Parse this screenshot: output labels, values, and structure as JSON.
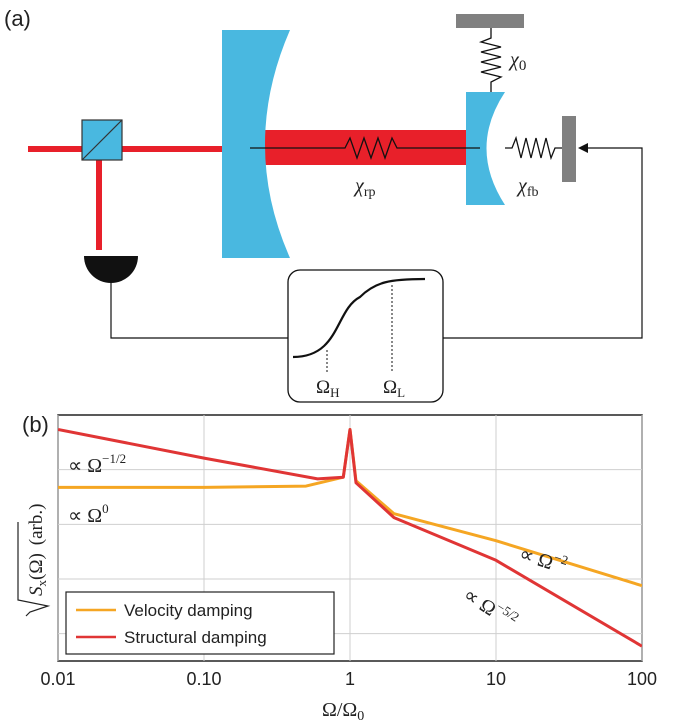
{
  "panel_a": {
    "label": "(a)",
    "chi_0": "χ0",
    "chi_rp": "χrp",
    "chi_fb": "χfb",
    "omega_h": "ΩH",
    "omega_l": "ΩL"
  },
  "panel_b": {
    "label": "(b)",
    "ylabel": "√Sx(Ω) (arb.)",
    "xlabel": "Ω/Ω0",
    "annotations": [
      "∝ Ω−1/2",
      "∝ Ω0",
      "∝ Ω−2",
      "∝ Ω−5/2"
    ]
  },
  "colors": {
    "laser_red": "#e8202a",
    "mirror_blue": "#49b8e0",
    "velocity_orange": "#f5a623",
    "structural_red": "#e03535",
    "support_gray": "#808080"
  },
  "chart_data": {
    "type": "line",
    "title": "",
    "xlabel": "Ω/Ω0",
    "ylabel": "√Sx(Ω) (arb.)",
    "xscale": "log",
    "yscale": "log",
    "xlim": [
      0.01,
      100
    ],
    "x_ticks": [
      "0.01",
      "0.10",
      "1",
      "10",
      "100"
    ],
    "grid": true,
    "legend_position": "bottom-left",
    "series": [
      {
        "name": "Velocity damping",
        "color": "#f5a623",
        "x": [
          0.01,
          0.1,
          0.5,
          0.9,
          1,
          1.1,
          2,
          10,
          100
        ],
        "y": [
          1,
          1,
          1.05,
          1.5,
          10,
          1.3,
          0.35,
          0.12,
          0.02
        ]
      },
      {
        "name": "Structural damping",
        "color": "#e03535",
        "x": [
          0.01,
          0.1,
          0.6,
          0.9,
          1,
          1.1,
          2,
          10,
          100
        ],
        "y": [
          10,
          3.2,
          1.4,
          1.5,
          10,
          1.2,
          0.3,
          0.055,
          0.0018
        ]
      }
    ]
  }
}
